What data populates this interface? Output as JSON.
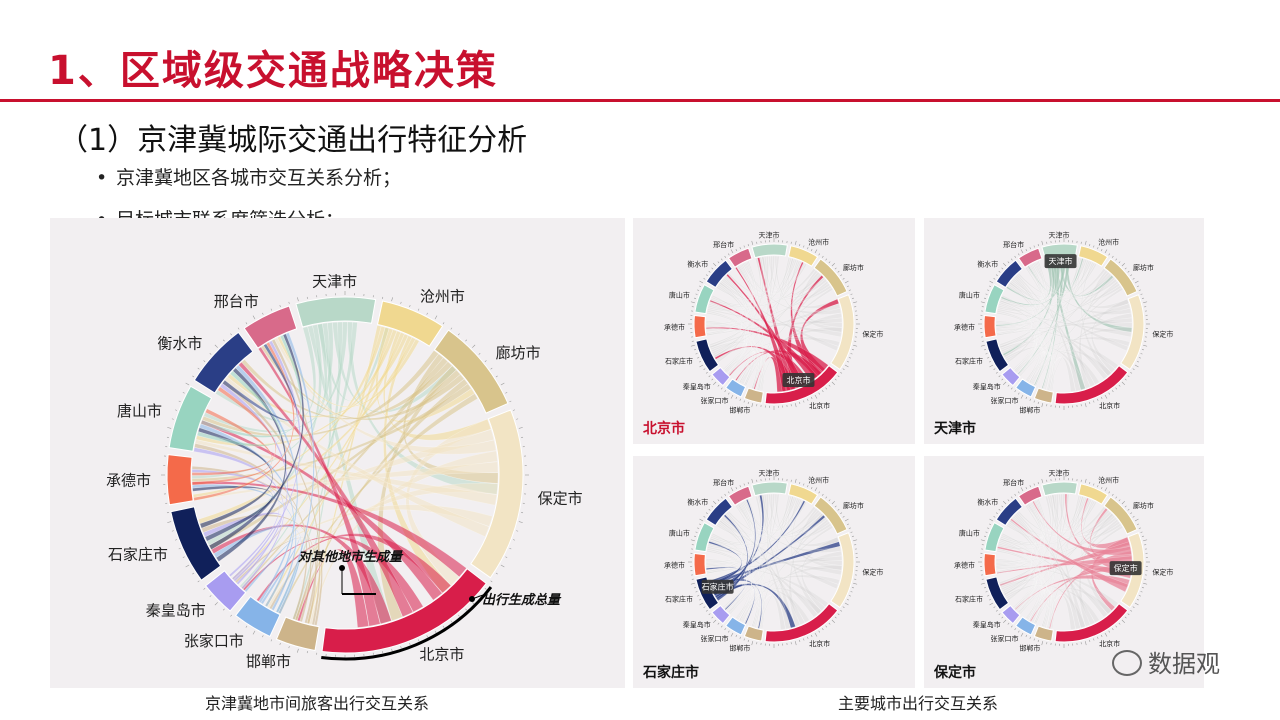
{
  "title": "1、区域级交通战略决策",
  "subtitle": "（1）京津冀城际交通出行特征分析",
  "bullets": [
    "京津冀地区各城市交互关系分析；",
    "目标城市联系度筛选分析；"
  ],
  "cities": [
    {
      "name": "天津市",
      "color": "#b8d8c8",
      "share": 8.0
    },
    {
      "name": "沧州市",
      "color": "#f0d890",
      "share": 6.5
    },
    {
      "name": "廊坊市",
      "color": "#d8c48c",
      "share": 9.5
    },
    {
      "name": "保定市",
      "color": "#f2e4c4",
      "share": 17.5
    },
    {
      "name": "北京市",
      "color": "#d81e4a",
      "share": 18.5
    },
    {
      "name": "邯郸市",
      "color": "#cdb48a",
      "share": 4.0
    },
    {
      "name": "张家口市",
      "color": "#86b4e8",
      "share": 4.0
    },
    {
      "name": "秦皇岛市",
      "color": "#a89cf0",
      "share": 3.5
    },
    {
      "name": "石家庄市",
      "color": "#10205a",
      "share": 7.5
    },
    {
      "name": "承德市",
      "color": "#f46a4a",
      "share": 5.0
    },
    {
      "name": "唐山市",
      "color": "#98d4c0",
      "share": 6.5
    },
    {
      "name": "衡水市",
      "color": "#2a3e86",
      "share": 6.5
    },
    {
      "name": "邢台市",
      "color": "#d86a8a",
      "share": 5.0
    }
  ],
  "main_chart": {
    "annotation_inner": "对其他地市生成量",
    "annotation_outer": "出行生成总量",
    "caption": "京津冀地市间旅客出行交互关系"
  },
  "small_charts": [
    {
      "id": "bj",
      "label": "北京市",
      "focus": 4,
      "highlight_color": "#d81e4a"
    },
    {
      "id": "tj",
      "label": "天津市",
      "focus": 0,
      "highlight_color": "#a8c8b8"
    },
    {
      "id": "sjz",
      "label": "石家庄市",
      "focus": 8,
      "highlight_color": "#2a3e86"
    },
    {
      "id": "bd",
      "label": "保定市",
      "focus": 3,
      "highlight_color": "#e8869a"
    }
  ],
  "right_caption": "主要城市出行交互关系",
  "watermark": "数据观"
}
